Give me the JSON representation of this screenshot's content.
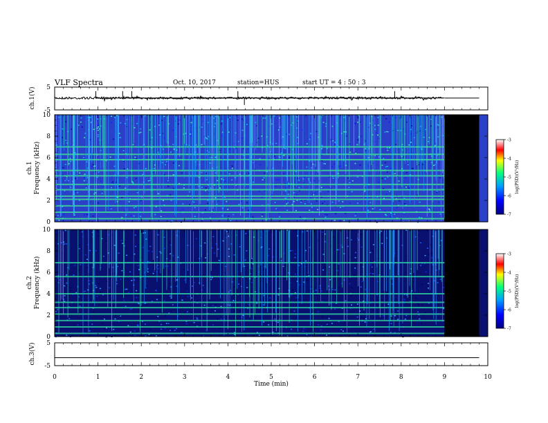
{
  "header": {
    "title": "VLF Spectra",
    "date": "Oct. 10, 2017",
    "station": "station=HUS",
    "start": "start  UT =   4 : 50 : 3"
  },
  "chart_data": [
    {
      "type": "line",
      "panel": "ch1-waveform",
      "ylabel": "ch.1(V)",
      "ylim": [
        -5,
        5
      ],
      "yticks": [
        "5",
        "-5"
      ],
      "xlim": [
        0,
        10
      ],
      "data_end_min": 9.0,
      "after_end_level": 0.2,
      "spikes_min": [
        0.95,
        1.57,
        1.78,
        4.23,
        4.38,
        7.85
      ]
    },
    {
      "type": "heatmap",
      "panel": "ch1-spectrogram",
      "ylabel": "Frequency (kHz)",
      "channel": "ch.1",
      "ylim": [
        0,
        10
      ],
      "yticks": [
        "0",
        "2",
        "4",
        "6",
        "8",
        "10"
      ],
      "xlim": [
        0,
        10
      ],
      "data_end_min": 9.0,
      "bands_khz": [
        0.3,
        0.9,
        1.5,
        2.1,
        2.4,
        3.0,
        3.5,
        4.3,
        4.8,
        5.8,
        6.3,
        7.0
      ],
      "colorbar": {
        "label": "log(PSD)(V²/Hz)",
        "range": [
          -7,
          -3
        ],
        "ticks": [
          "-3",
          "-4",
          "-5",
          "-6",
          "-7"
        ]
      }
    },
    {
      "type": "heatmap",
      "panel": "ch2-spectrogram",
      "ylabel": "Frequency (kHz)",
      "channel": "ch.2",
      "ylim": [
        0,
        10
      ],
      "yticks": [
        "0",
        "2",
        "4",
        "6",
        "8",
        "10"
      ],
      "xlim": [
        0,
        10
      ],
      "data_end_min": 9.0,
      "bands_khz": [
        0.3,
        0.9,
        1.5,
        2.1,
        2.7,
        3.2,
        4.0,
        5.6,
        6.9
      ],
      "colorbar": {
        "label": "log(PSD)(V²/Hz)",
        "range": [
          -7,
          -3
        ],
        "ticks": [
          "-3",
          "-4",
          "-5",
          "-6",
          "-7"
        ]
      }
    },
    {
      "type": "line",
      "panel": "ch3-waveform",
      "ylabel": "ch.3(V)",
      "ylim": [
        -5,
        5
      ],
      "yticks": [
        "5",
        "-5"
      ],
      "xlim": [
        0,
        10
      ],
      "level": -1.5
    }
  ],
  "xaxis": {
    "label": "Time  (min)",
    "ticks": [
      "0",
      "1",
      "2",
      "3",
      "4",
      "5",
      "6",
      "7",
      "8",
      "9",
      "10"
    ]
  },
  "colors": {
    "background": "#ffffff",
    "no_data": "#000000",
    "colormap": [
      "#000080",
      "#0000ff",
      "#00a0ff",
      "#00ff80",
      "#ffff00",
      "#ff0000",
      "#ffffff"
    ]
  }
}
